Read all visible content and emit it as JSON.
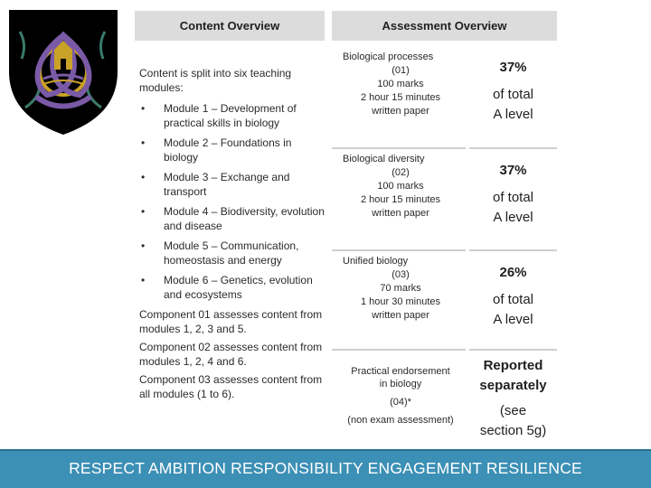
{
  "content_overview": {
    "header": "Content Overview",
    "intro": "Content is split into six teaching modules:",
    "modules": [
      "Module 1 – Development of practical skills in biology",
      "Module 2 – Foundations in biology",
      "Module 3 – Exchange and transport",
      "Module 4 – Biodiversity, evolution and disease",
      "Module 5 – Communication, homeostasis and energy",
      "Module 6 – Genetics, evolution and ecosystems"
    ],
    "bullet": "•",
    "components": [
      "Component 01 assesses content from modules 1, 2, 3 and 5.",
      "Component 02 assesses content from modules 1, 2, 4 and 6.",
      "Component 03 assesses content from all modules (1 to 6)."
    ]
  },
  "assessment_overview": {
    "header": "Assessment Overview",
    "papers": [
      {
        "title": "Biological processes",
        "code": "(01)",
        "marks": "100 marks",
        "duration": "2 hour 15 minutes",
        "type": "written paper",
        "weight": "37%",
        "weight_note_1": "of total",
        "weight_note_2": "A level"
      },
      {
        "title": "Biological diversity",
        "code": "(02)",
        "marks": "100 marks",
        "duration": "2 hour 15 minutes",
        "type": "written paper",
        "weight": "37%",
        "weight_note_1": "of total",
        "weight_note_2": "A level"
      },
      {
        "title": "Unified biology",
        "code": "(03)",
        "marks": "70 marks",
        "duration": "1 hour 30 minutes",
        "type": "written paper",
        "weight": "26%",
        "weight_note_1": "of total",
        "weight_note_2": "A level"
      }
    ],
    "endorsement": {
      "title_1": "Practical endorsement",
      "title_2": "in biology",
      "code": "(04)*",
      "note": "(non exam assessment)",
      "weight_1": "Reported",
      "weight_2": "separately",
      "ref_1": "(see",
      "ref_2": "section 5g)"
    }
  },
  "footer": {
    "values": "RESPECT AMBITION RESPONSIBILITY ENGAGEMENT RESILIENCE",
    "color": "#3c8fb5"
  },
  "colors": {
    "header_bg": "#dcdcdc",
    "crest_bg": "#000000",
    "crest_ring": "#7a5aa6"
  }
}
